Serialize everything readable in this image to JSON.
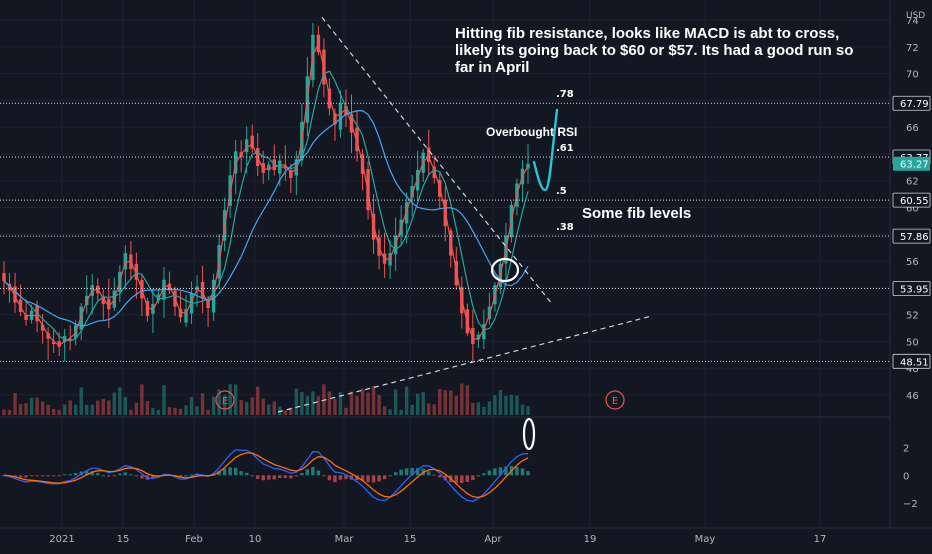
{
  "chart_data": {
    "type": "candlestick",
    "symbol_hint": "",
    "currency": "USD",
    "y_axis": {
      "unit": "USD",
      "ticks": [
        46,
        48,
        50,
        52,
        54,
        56,
        58,
        60,
        62,
        64,
        66,
        68,
        70,
        72,
        74
      ],
      "range": [
        44.5,
        75.5
      ]
    },
    "x_axis": {
      "ticks": [
        "2021",
        "15",
        "Feb",
        "10",
        "Mar",
        "15",
        "Apr",
        "19",
        "May",
        "17"
      ]
    },
    "price_levels": [
      {
        "value": 67.79,
        "fib_label": ".78"
      },
      {
        "value": 63.77,
        "fib_label": ".61"
      },
      {
        "value": 60.55,
        "fib_label": ".5"
      },
      {
        "value": 57.86,
        "fib_label": ".38"
      },
      {
        "value": 53.95,
        "fib_label": ""
      },
      {
        "value": 48.51,
        "fib_label": ""
      }
    ],
    "last_price": {
      "value": "63.27",
      "color": "#26a69a"
    },
    "earnings_markers": [
      "E",
      "E"
    ],
    "candle_closes": [
      54.5,
      53.8,
      52.9,
      52.2,
      51.6,
      52.3,
      51.5,
      50.8,
      50.2,
      49.8,
      49.6,
      50.4,
      50.1,
      51.2,
      52.6,
      53.4,
      54.2,
      53.6,
      52.8,
      52.4,
      53.8,
      55.2,
      56.6,
      55.4,
      54.6,
      53.2,
      51.9,
      52.8,
      53.5,
      54.6,
      53.8,
      52.6,
      51.8,
      52.4,
      53.6,
      54.1,
      53.2,
      52.5,
      54.6,
      57.2,
      59.8,
      62.4,
      64.2,
      63.8,
      65.1,
      64.4,
      63.1,
      62.6,
      63.2,
      62.8,
      63.5,
      62.9,
      62.2,
      63.6,
      66.4,
      69.8,
      72.9,
      71.6,
      69.2,
      67.4,
      66.2,
      67.8,
      66.9,
      65.6,
      64.2,
      62.5,
      59.8,
      57.6,
      56.4,
      55.8,
      56.6,
      57.9,
      59.1,
      60.4,
      61.6,
      62.8,
      64.1,
      63.4,
      62.2,
      60.8,
      58.6,
      56.4,
      54.2,
      52.1,
      50.6,
      49.8,
      50.5,
      51.3,
      52.6,
      54.2,
      55.8,
      57.9,
      60.2,
      61.8,
      62.9,
      63.27
    ],
    "ma_periods": [
      9,
      21,
      50
    ],
    "ma_colors": [
      "#ef5350",
      "#26a69a",
      "#42a5f5"
    ],
    "macd": {
      "range": [
        -3.2,
        3.6
      ],
      "ticks": [
        2,
        0,
        -2
      ],
      "macd_color": "#2962ff",
      "signal_color": "#ff6d00"
    }
  },
  "annotations": {
    "main_note": "Hitting fib resistance, looks like MACD is abt to cross, likely its going back to $60 or $57. Its had a good run so far in April",
    "fib_note": "Some fib levels",
    "rsi_note": "Overbought RSI"
  }
}
